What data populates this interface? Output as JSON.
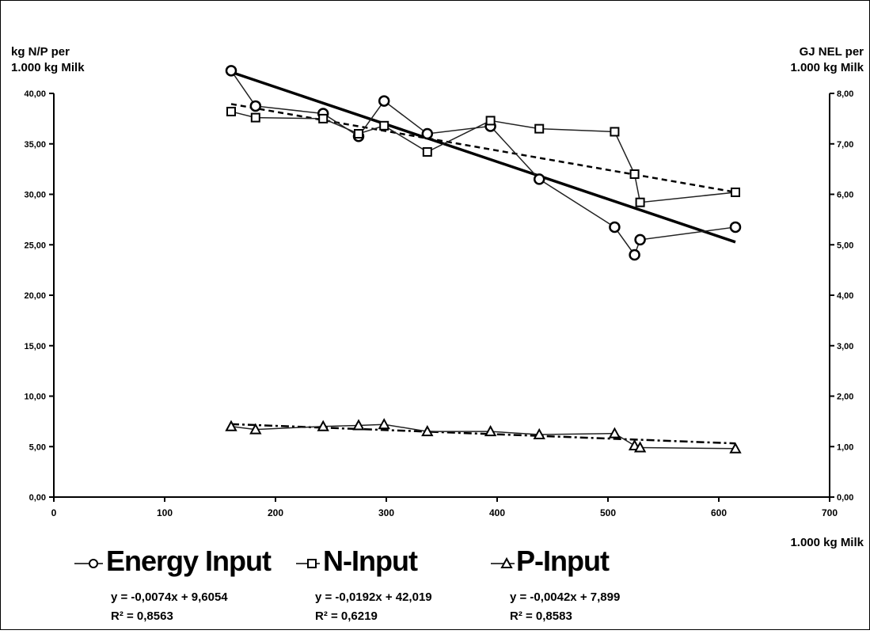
{
  "chart_data": {
    "type": "line",
    "left_axis_title": [
      "kg N/P per",
      "1.000 kg Milk"
    ],
    "right_axis_title": [
      "GJ NEL per",
      "1.000 kg Milk"
    ],
    "x_axis_title": "1.000 kg Milk",
    "xlim": [
      0,
      700
    ],
    "ylim_left": [
      0,
      40
    ],
    "ylim_right": [
      0,
      8
    ],
    "x_ticks": [
      "0",
      "100",
      "200",
      "300",
      "400",
      "500",
      "600",
      "700"
    ],
    "y_ticks_left": [
      "0,00",
      "5,00",
      "10,00",
      "15,00",
      "20,00",
      "25,00",
      "30,00",
      "35,00",
      "40,00"
    ],
    "y_ticks_right": [
      "0,00",
      "1,00",
      "2,00",
      "3,00",
      "4,00",
      "5,00",
      "6,00",
      "7,00",
      "8,00"
    ],
    "grid": false,
    "legend_position": "bottom",
    "series": [
      {
        "name": "Energy Input",
        "marker": "circle",
        "axis": "right",
        "x": [
          160,
          182,
          243,
          275,
          298,
          337,
          394,
          438,
          506,
          524,
          529,
          615
        ],
        "y": [
          8.45,
          7.75,
          7.6,
          7.15,
          7.85,
          7.2,
          7.35,
          6.3,
          5.35,
          4.8,
          5.1,
          5.35
        ],
        "trend": {
          "slope": -0.0074,
          "intercept": 9.6054,
          "x": [
            160,
            615
          ],
          "style": "solid-bold"
        },
        "equation": "y = -0,0074x + 9,6054",
        "r2": "R² = 0,8563"
      },
      {
        "name": "N-Input",
        "marker": "square",
        "axis": "left",
        "x": [
          160,
          182,
          243,
          275,
          298,
          337,
          394,
          438,
          506,
          524,
          529,
          615
        ],
        "y": [
          38.2,
          37.6,
          37.5,
          36.0,
          36.8,
          34.2,
          37.3,
          36.5,
          36.2,
          32.0,
          29.2,
          30.2
        ],
        "trend": {
          "slope": -0.0192,
          "intercept": 42.019,
          "x": [
            160,
            615
          ],
          "style": "dashed"
        },
        "equation": "y = -0,0192x + 42,019",
        "r2": "R² = 0,6219"
      },
      {
        "name": "P-Input",
        "marker": "triangle",
        "axis": "left",
        "x": [
          160,
          182,
          243,
          275,
          298,
          337,
          394,
          438,
          506,
          524,
          529,
          615
        ],
        "y": [
          7.0,
          6.7,
          7.0,
          7.1,
          7.2,
          6.5,
          6.5,
          6.2,
          6.3,
          5.1,
          4.9,
          4.8
        ],
        "trend": {
          "slope": -0.0042,
          "intercept": 7.899,
          "x": [
            160,
            615
          ],
          "style": "dash-dot"
        },
        "equation": "y = -0,0042x + 7,899",
        "r2": "R² = 0,8583"
      }
    ]
  }
}
